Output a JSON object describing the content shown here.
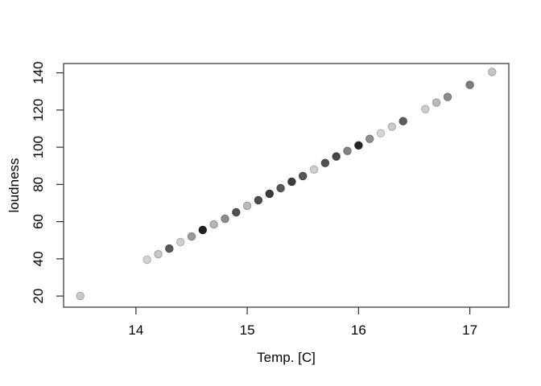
{
  "figure": {
    "background": "#ffffff",
    "box_color": "#2e2e2e",
    "text_color": "#000000"
  },
  "chart_data": {
    "type": "scatter",
    "title": "",
    "xlabel": "Temp. [C]",
    "ylabel": "loudness",
    "xlim": [
      13.35,
      17.35
    ],
    "ylim": [
      14,
      145
    ],
    "x_ticks": [
      14,
      15,
      16,
      17
    ],
    "y_ticks": [
      20,
      40,
      60,
      80,
      100,
      120,
      140
    ],
    "grid": false,
    "legend": null,
    "marker": "filled-circle",
    "points": [
      {
        "x": 13.5,
        "y": 20.0,
        "color": "#c9c9c9"
      },
      {
        "x": 14.1,
        "y": 39.5,
        "color": "#d2d2d2"
      },
      {
        "x": 14.2,
        "y": 42.5,
        "color": "#c6c6c6"
      },
      {
        "x": 14.3,
        "y": 45.5,
        "color": "#595959"
      },
      {
        "x": 14.4,
        "y": 49.0,
        "color": "#d0d0d0"
      },
      {
        "x": 14.5,
        "y": 52.0,
        "color": "#9b9b9b"
      },
      {
        "x": 14.6,
        "y": 55.5,
        "color": "#212121"
      },
      {
        "x": 14.7,
        "y": 58.5,
        "color": "#b4b4b4"
      },
      {
        "x": 14.8,
        "y": 61.5,
        "color": "#8c8c8c"
      },
      {
        "x": 14.9,
        "y": 65.0,
        "color": "#525252"
      },
      {
        "x": 15.0,
        "y": 68.5,
        "color": "#bcbcbc"
      },
      {
        "x": 15.1,
        "y": 71.5,
        "color": "#4e4e4e"
      },
      {
        "x": 15.2,
        "y": 75.0,
        "color": "#3c3c3c"
      },
      {
        "x": 15.3,
        "y": 78.0,
        "color": "#585858"
      },
      {
        "x": 15.4,
        "y": 81.5,
        "color": "#3e3e3e"
      },
      {
        "x": 15.5,
        "y": 84.5,
        "color": "#575757"
      },
      {
        "x": 15.6,
        "y": 88.0,
        "color": "#cecece"
      },
      {
        "x": 15.7,
        "y": 91.5,
        "color": "#505050"
      },
      {
        "x": 15.8,
        "y": 95.0,
        "color": "#474747"
      },
      {
        "x": 15.9,
        "y": 98.0,
        "color": "#828282"
      },
      {
        "x": 16.0,
        "y": 101.0,
        "color": "#262626"
      },
      {
        "x": 16.1,
        "y": 104.5,
        "color": "#8e8e8e"
      },
      {
        "x": 16.2,
        "y": 107.5,
        "color": "#d6d6d6"
      },
      {
        "x": 16.3,
        "y": 111.0,
        "color": "#cbcbcb"
      },
      {
        "x": 16.4,
        "y": 114.0,
        "color": "#5c5c5c"
      },
      {
        "x": 16.6,
        "y": 120.5,
        "color": "#cccccc"
      },
      {
        "x": 16.7,
        "y": 124.0,
        "color": "#b9b9b9"
      },
      {
        "x": 16.8,
        "y": 127.0,
        "color": "#8a8a8a"
      },
      {
        "x": 17.0,
        "y": 133.5,
        "color": "#7d7d7d"
      },
      {
        "x": 17.2,
        "y": 140.5,
        "color": "#c5c5c5"
      }
    ]
  }
}
